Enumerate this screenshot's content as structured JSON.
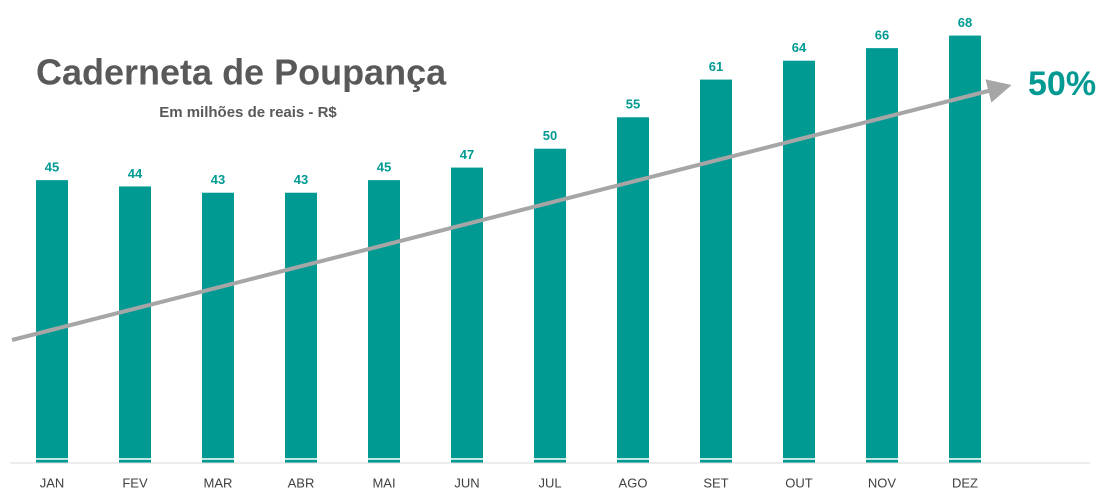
{
  "chart_data": {
    "type": "bar",
    "title": "Caderneta de Poupança",
    "subtitle": "Em milhões de reais - R$",
    "annotation": "50%",
    "categories": [
      "JAN",
      "FEV",
      "MAR",
      "ABR",
      "MAI",
      "JUN",
      "JUL",
      "AGO",
      "SET",
      "OUT",
      "NOV",
      "DEZ"
    ],
    "values": [
      45,
      44,
      43,
      43,
      45,
      47,
      50,
      55,
      61,
      64,
      66,
      68
    ],
    "color": "#009a93",
    "ylim": [
      0,
      70
    ]
  }
}
